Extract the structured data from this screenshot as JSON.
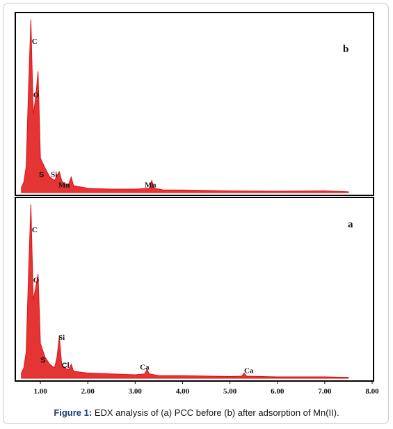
{
  "caption": {
    "lead": "Figure 1:",
    "text": " EDX analysis of (a) PCC before (b) after adsorption of Mn(II)."
  },
  "colors": {
    "spectrum": "#e01010",
    "frame": "#000000",
    "caption_lead": "#1a3e7a"
  },
  "chart_data": [
    {
      "type": "line",
      "panel": "b",
      "panel_label": "b",
      "xlim": [
        0.5,
        8.0
      ],
      "ylim": [
        0,
        1
      ],
      "series": [
        {
          "x": [
            0.6,
            0.65,
            0.7,
            0.75,
            0.8,
            0.85,
            0.9,
            0.95,
            1.0,
            1.1,
            1.2,
            1.3,
            1.35,
            1.4,
            1.45,
            1.5,
            1.6,
            1.65,
            1.7,
            2.0,
            2.5,
            3.0,
            3.3,
            3.35,
            3.4,
            3.6,
            4.0,
            5.0,
            6.0,
            7.0,
            7.5
          ],
          "values": [
            0.03,
            0.06,
            0.15,
            0.6,
            1.0,
            0.45,
            0.55,
            0.7,
            0.2,
            0.14,
            0.09,
            0.07,
            0.1,
            0.12,
            0.07,
            0.05,
            0.05,
            0.09,
            0.04,
            0.025,
            0.02,
            0.02,
            0.025,
            0.07,
            0.025,
            0.015,
            0.015,
            0.01,
            0.008,
            0.01,
            0.005
          ]
        }
      ],
      "annotations": [
        {
          "text": "C",
          "x": 0.82,
          "y": 0.86
        },
        {
          "text": "O",
          "x": 0.85,
          "y": 0.55
        },
        {
          "text": "S",
          "x": 0.97,
          "y": 0.09
        },
        {
          "text": "Si",
          "x": 1.22,
          "y": 0.09
        },
        {
          "text": "Mn",
          "x": 1.38,
          "y": 0.03
        },
        {
          "text": "Mn",
          "x": 3.2,
          "y": 0.03
        }
      ]
    },
    {
      "type": "line",
      "panel": "a",
      "panel_label": "a",
      "xlim": [
        0.5,
        8.0
      ],
      "ylim": [
        0,
        1
      ],
      "x_ticks": [
        "1.00",
        "2.00",
        "3.00",
        "4.00",
        "5.00",
        "6.00",
        "7.00",
        "8.00"
      ],
      "x_tick_values": [
        1,
        2,
        3,
        4,
        5,
        6,
        7,
        8
      ],
      "series": [
        {
          "x": [
            0.6,
            0.65,
            0.7,
            0.75,
            0.8,
            0.85,
            0.9,
            0.95,
            1.0,
            1.1,
            1.2,
            1.3,
            1.35,
            1.4,
            1.45,
            1.5,
            1.6,
            1.65,
            1.7,
            2.0,
            2.5,
            3.0,
            3.2,
            3.25,
            3.3,
            3.5,
            4.0,
            5.0,
            5.25,
            5.3,
            5.35,
            6.0,
            7.0,
            7.5
          ],
          "values": [
            0.03,
            0.06,
            0.15,
            0.6,
            1.0,
            0.45,
            0.52,
            0.6,
            0.2,
            0.12,
            0.08,
            0.06,
            0.12,
            0.24,
            0.08,
            0.06,
            0.05,
            0.08,
            0.04,
            0.03,
            0.025,
            0.02,
            0.025,
            0.05,
            0.025,
            0.015,
            0.015,
            0.01,
            0.012,
            0.03,
            0.012,
            0.008,
            0.008,
            0.005
          ]
        }
      ],
      "annotations": [
        {
          "text": "C",
          "x": 0.82,
          "y": 0.84
        },
        {
          "text": "O",
          "x": 0.85,
          "y": 0.55
        },
        {
          "text": "Si",
          "x": 1.38,
          "y": 0.22
        },
        {
          "text": "S",
          "x": 1.0,
          "y": 0.09
        },
        {
          "text": "Cl",
          "x": 1.45,
          "y": 0.06
        },
        {
          "text": "Ca",
          "x": 3.1,
          "y": 0.05
        },
        {
          "text": "Ca",
          "x": 5.3,
          "y": 0.03
        }
      ]
    }
  ]
}
